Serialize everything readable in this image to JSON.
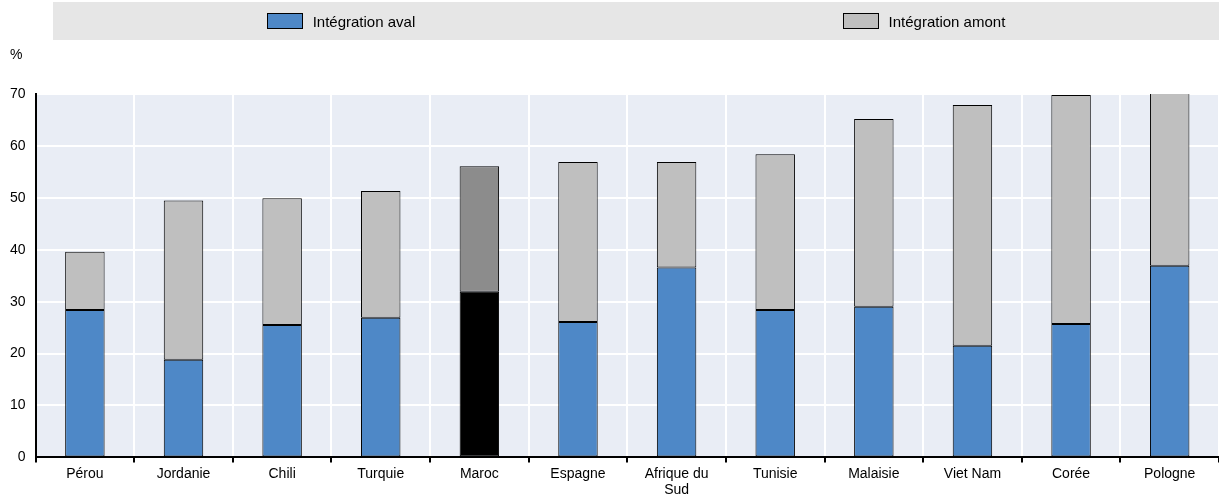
{
  "chart_data": {
    "type": "bar",
    "stacked": true,
    "ylabel": "%",
    "categories": [
      "Pérou",
      "Jordanie",
      "Chili",
      "Turquie",
      "Maroc",
      "Espagne",
      "Afrique du Sud",
      "Tunisie",
      "Malaisie",
      "Viet Nam",
      "Corée",
      "Pologne"
    ],
    "series": [
      {
        "name": "Intégration aval",
        "color": "#4e88c7",
        "colors": [
          "#4e88c7",
          "#4e88c7",
          "#4e88c7",
          "#4e88c7",
          "#000000",
          "#4e88c7",
          "#4e88c7",
          "#4e88c7",
          "#4e88c7",
          "#4e88c7",
          "#4e88c7",
          "#4e88c7"
        ],
        "values": [
          28.4,
          18.8,
          25.5,
          26.9,
          31.9,
          26.1,
          36.6,
          28.4,
          29.0,
          21.5,
          25.7,
          36.9
        ]
      },
      {
        "name": "Intégration amont",
        "color": "#bfbfbf",
        "colors": [
          "#bfbfbf",
          "#bfbfbf",
          "#bfbfbf",
          "#bfbfbf",
          "#8c8c8c",
          "#bfbfbf",
          "#bfbfbf",
          "#bfbfbf",
          "#bfbfbf",
          "#bfbfbf",
          "#bfbfbf",
          "#bfbfbf"
        ],
        "values": [
          11.2,
          30.7,
          24.4,
          24.4,
          24.2,
          30.8,
          20.3,
          30.0,
          36.2,
          46.4,
          44.1,
          33.3
        ]
      }
    ],
    "ylim": [
      0,
      70
    ],
    "yticks": [
      0,
      10,
      20,
      30,
      40,
      50,
      60,
      70
    ],
    "grid": true,
    "legend": "top"
  }
}
